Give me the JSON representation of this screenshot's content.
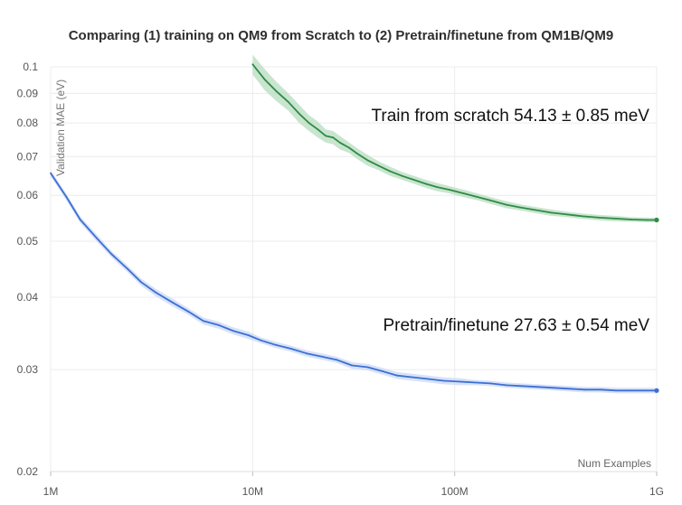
{
  "chart_data": {
    "type": "line",
    "title": "Comparing (1) training on QM9 from Scratch to (2) Pretrain/finetune from QM1B/QM9",
    "xlabel": "Num Examples",
    "ylabel": "Validation MAE (eV)",
    "x_scale": "log",
    "y_scale": "log",
    "xlim": [
      1000000,
      1000000000
    ],
    "ylim": [
      0.02,
      0.1
    ],
    "grid": true,
    "x_ticks": [
      {
        "value": 1000000,
        "label": "1M"
      },
      {
        "value": 10000000,
        "label": "10M"
      },
      {
        "value": 100000000,
        "label": "100M"
      },
      {
        "value": 1000000000,
        "label": "1G"
      }
    ],
    "y_ticks": [
      {
        "value": 0.02,
        "label": "0.02"
      },
      {
        "value": 0.03,
        "label": "0.03"
      },
      {
        "value": 0.04,
        "label": "0.04"
      },
      {
        "value": 0.05,
        "label": "0.05"
      },
      {
        "value": 0.06,
        "label": "0.06"
      },
      {
        "value": 0.07,
        "label": "0.07"
      },
      {
        "value": 0.08,
        "label": "0.08"
      },
      {
        "value": 0.09,
        "label": "0.09"
      },
      {
        "value": 0.1,
        "label": "0.1"
      }
    ],
    "series": [
      {
        "color": "#2e8b45",
        "band_color": "#b7dcbf",
        "x": [
          10000000,
          11500000,
          13000000,
          15000000,
          17000000,
          19000000,
          21000000,
          23000000,
          25000000,
          27000000,
          30000000,
          33000000,
          37000000,
          42000000,
          48000000,
          55000000,
          63000000,
          72000000,
          82000000,
          95000000,
          110000000,
          130000000,
          150000000,
          180000000,
          210000000,
          250000000,
          300000000,
          360000000,
          430000000,
          520000000,
          620000000,
          750000000,
          900000000,
          1000000000
        ],
        "values": [
          0.101,
          0.095,
          0.091,
          0.087,
          0.083,
          0.08,
          0.078,
          0.076,
          0.0755,
          0.074,
          0.0725,
          0.0708,
          0.069,
          0.0675,
          0.066,
          0.0648,
          0.0638,
          0.0628,
          0.062,
          0.0613,
          0.0605,
          0.0596,
          0.0588,
          0.0578,
          0.0572,
          0.0566,
          0.056,
          0.0556,
          0.0552,
          0.0549,
          0.0547,
          0.0545,
          0.0544,
          0.0544
        ],
        "band": [
          0.004,
          0.004,
          0.0035,
          0.003,
          0.003,
          0.0025,
          0.0025,
          0.002,
          0.002,
          0.002,
          0.0015,
          0.0015,
          0.0015,
          0.0012,
          0.0012,
          0.001,
          0.001,
          0.001,
          0.001,
          0.0009,
          0.0009,
          0.0008,
          0.0008,
          0.0008,
          0.0007,
          0.0007,
          0.0007,
          0.0006,
          0.0006,
          0.0006,
          0.0006,
          0.0005,
          0.0005,
          0.0005
        ]
      },
      {
        "color": "#3b6fd4",
        "band_color": "#c9d8f5",
        "x": [
          1000000,
          1200000,
          1400000,
          1700000,
          2000000,
          2400000,
          2800000,
          3300000,
          4000000,
          4800000,
          5700000,
          6800000,
          8000000,
          9500000,
          11000000,
          13000000,
          15500000,
          18500000,
          22000000,
          26000000,
          31000000,
          37000000,
          44000000,
          52000000,
          62000000,
          74000000,
          88000000,
          105000000,
          125000000,
          150000000,
          180000000,
          215000000,
          260000000,
          310000000,
          370000000,
          440000000,
          530000000,
          630000000,
          750000000,
          900000000,
          1000000000
        ],
        "values": [
          0.0655,
          0.0595,
          0.0545,
          0.0505,
          0.0475,
          0.0448,
          0.0425,
          0.0408,
          0.0392,
          0.0378,
          0.0364,
          0.0358,
          0.035,
          0.0344,
          0.0337,
          0.0331,
          0.0326,
          0.032,
          0.0316,
          0.0312,
          0.0305,
          0.0303,
          0.0298,
          0.0293,
          0.0291,
          0.0289,
          0.0287,
          0.0286,
          0.0285,
          0.0284,
          0.0282,
          0.0281,
          0.028,
          0.0279,
          0.0278,
          0.0277,
          0.0277,
          0.0276,
          0.0276,
          0.0276,
          0.0276
        ],
        "band": [
          0.0008,
          0.0008,
          0.0007,
          0.0007,
          0.0006,
          0.0006,
          0.0006,
          0.0006,
          0.0006,
          0.0005,
          0.0005,
          0.0005,
          0.0005,
          0.0005,
          0.0004,
          0.0004,
          0.0004,
          0.0004,
          0.0004,
          0.0004,
          0.0004,
          0.0004,
          0.0004,
          0.0004,
          0.0004,
          0.0004,
          0.0004,
          0.0004,
          0.0003,
          0.0003,
          0.0003,
          0.0003,
          0.0003,
          0.0003,
          0.0003,
          0.0003,
          0.0003,
          0.0003,
          0.0003,
          0.0003,
          0.0003
        ]
      }
    ],
    "annotations": [
      {
        "text": "Train from scratch 54.13 ± 0.85 meV",
        "color": "#111111"
      },
      {
        "text": "Pretrain/finetune 27.63 ± 0.54 meV",
        "color": "#111111"
      }
    ]
  }
}
